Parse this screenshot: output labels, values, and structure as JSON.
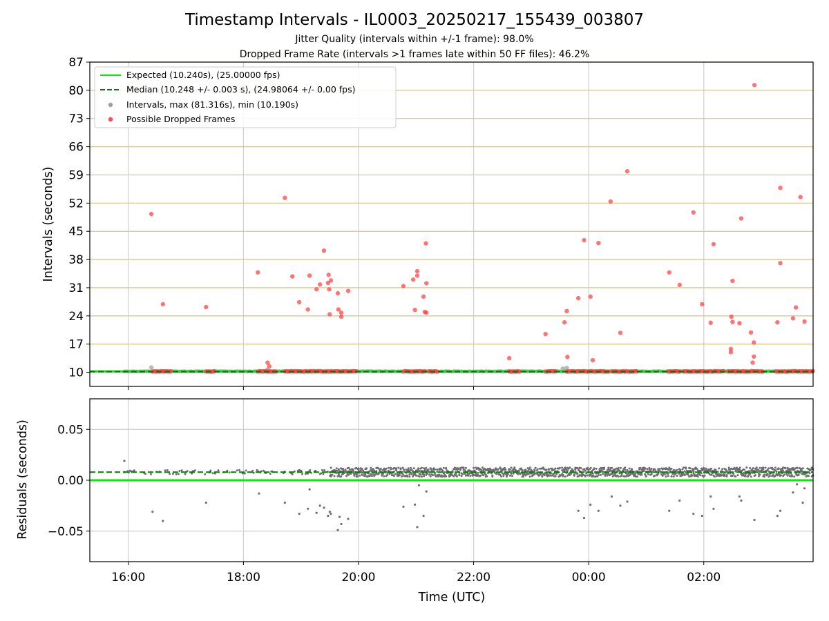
{
  "chart_data": {
    "type": "scatter",
    "title": "Timestamp Intervals - IL0003_20250217_155439_003807",
    "subtitles": [
      "Jitter Quality (intervals within +/-1 frame): 98.0%",
      "Dropped Frame Rate (intervals >1 frames late within 50 FF files): 46.2%"
    ],
    "xlabel": "Time (UTC)",
    "x_tick_labels": [
      "16:00",
      "18:00",
      "20:00",
      "22:00",
      "00:00",
      "02:00"
    ],
    "x_tick_hours": [
      16,
      18,
      20,
      22,
      24,
      26
    ],
    "xlim_hours": [
      15.33,
      27.9
    ],
    "top_panel": {
      "ylabel": "Intervals (seconds)",
      "ylim": [
        6.5,
        87
      ],
      "yticks": [
        10,
        17,
        24,
        31,
        38,
        45,
        52,
        59,
        66,
        73,
        80,
        87
      ],
      "grid": "vertical gridlines at x ticks, horizontal tan lines at y ticks",
      "legend_position": "upper-left",
      "series": [
        {
          "name": "Expected (10.240s), (25.00000 fps)",
          "kind": "line",
          "color": "#00ee00",
          "y": 10.24
        },
        {
          "name": "Median (10.248 +/- 0.003 s), (24.98064 +/- 0.00 fps)",
          "kind": "dashed-line",
          "color": "#007a00",
          "y": 10.248
        },
        {
          "name": "Intervals, max (81.316s), min (10.190s)",
          "kind": "scatter",
          "color": "#a0a0a0",
          "segments": [
            [
              15.93,
              27.9
            ]
          ],
          "points": [
            [
              16.4,
              11.2
            ],
            [
              23.55,
              10.9
            ],
            [
              23.62,
              11.1
            ],
            [
              18.42,
              10.7
            ]
          ]
        },
        {
          "name": "Possible Dropped Frames",
          "kind": "scatter",
          "color": "#ff4d4d",
          "points": [
            [
              16.4,
              49.3
            ],
            [
              16.6,
              26.9
            ],
            [
              17.35,
              26.2
            ],
            [
              18.25,
              34.8
            ],
            [
              18.42,
              12.4
            ],
            [
              18.45,
              11.5
            ],
            [
              18.72,
              53.3
            ],
            [
              18.85,
              33.8
            ],
            [
              18.97,
              27.4
            ],
            [
              19.12,
              25.6
            ],
            [
              19.15,
              34.0
            ],
            [
              19.27,
              30.6
            ],
            [
              19.33,
              31.8
            ],
            [
              19.4,
              40.2
            ],
            [
              19.47,
              32.2
            ],
            [
              19.48,
              34.2
            ],
            [
              19.49,
              30.6
            ],
            [
              19.5,
              24.4
            ],
            [
              19.52,
              32.8
            ],
            [
              19.64,
              29.6
            ],
            [
              19.65,
              25.6
            ],
            [
              19.7,
              23.8
            ],
            [
              19.7,
              24.8
            ],
            [
              19.82,
              30.2
            ],
            [
              20.78,
              31.4
            ],
            [
              20.95,
              33.0
            ],
            [
              20.98,
              25.5
            ],
            [
              21.02,
              35.1
            ],
            [
              21.02,
              34.0
            ],
            [
              21.13,
              28.8
            ],
            [
              21.15,
              25.0
            ],
            [
              21.17,
              42.0
            ],
            [
              21.18,
              32.1
            ],
            [
              21.18,
              24.8
            ],
            [
              22.62,
              13.5
            ],
            [
              23.25,
              19.5
            ],
            [
              23.58,
              22.4
            ],
            [
              23.63,
              13.8
            ],
            [
              23.62,
              25.2
            ],
            [
              23.82,
              28.4
            ],
            [
              23.92,
              42.8
            ],
            [
              24.03,
              28.8
            ],
            [
              24.07,
              13.0
            ],
            [
              24.17,
              42.1
            ],
            [
              24.38,
              52.4
            ],
            [
              24.55,
              19.8
            ],
            [
              24.67,
              59.9
            ],
            [
              25.4,
              34.8
            ],
            [
              25.58,
              31.7
            ],
            [
              25.82,
              49.7
            ],
            [
              25.97,
              26.9
            ],
            [
              26.12,
              22.3
            ],
            [
              26.17,
              41.8
            ],
            [
              26.47,
              15.0
            ],
            [
              26.47,
              15.8
            ],
            [
              26.48,
              23.8
            ],
            [
              26.5,
              22.5
            ],
            [
              26.5,
              32.7
            ],
            [
              26.62,
              22.2
            ],
            [
              26.65,
              48.2
            ],
            [
              26.82,
              19.9
            ],
            [
              26.85,
              12.4
            ],
            [
              26.87,
              13.9
            ],
            [
              26.87,
              17.4
            ],
            [
              26.88,
              81.3
            ],
            [
              27.28,
              22.4
            ],
            [
              27.33,
              55.8
            ],
            [
              27.33,
              37.1
            ],
            [
              27.55,
              23.4
            ],
            [
              27.6,
              26.1
            ],
            [
              27.68,
              53.5
            ],
            [
              27.75,
              22.6
            ]
          ],
          "dense_bands_at_y": 10.24,
          "dense_bands_hours": [
            [
              16.42,
              16.76
            ],
            [
              17.35,
              17.52
            ],
            [
              18.25,
              18.58
            ],
            [
              18.72,
              19.98
            ],
            [
              20.78,
              21.18
            ],
            [
              21.22,
              21.38
            ],
            [
              22.62,
              22.8
            ],
            [
              23.25,
              23.45
            ],
            [
              23.62,
              24.35
            ],
            [
              24.4,
              24.85
            ],
            [
              25.38,
              25.6
            ],
            [
              25.65,
              25.8
            ],
            [
              25.82,
              26.35
            ],
            [
              26.42,
              27.05
            ],
            [
              27.25,
              27.5
            ],
            [
              27.52,
              27.9
            ]
          ]
        }
      ]
    },
    "bottom_panel": {
      "ylabel": "Residuals (seconds)",
      "ylim": [
        -0.08,
        0.08
      ],
      "yticks": [
        0.05,
        0.0,
        -0.05
      ],
      "ytick_labels": [
        "0.05",
        "0.00",
        "−0.05"
      ],
      "grid": "horizontal and vertical gridlines",
      "series": [
        {
          "name": "Expected",
          "kind": "line",
          "color": "#00ee00",
          "y": 0.0
        },
        {
          "name": "Median",
          "kind": "dashed-line",
          "color": "#007a00",
          "y": 0.008
        },
        {
          "name": "Residuals",
          "kind": "scatter",
          "color": "#6e6e6e",
          "dense_band": {
            "center": 0.008,
            "spread": 0.003,
            "wide_from_hour": 19.5
          },
          "outliers": [
            [
              15.93,
              0.019
            ],
            [
              16.42,
              -0.031
            ],
            [
              16.6,
              -0.04
            ],
            [
              17.35,
              -0.022
            ],
            [
              18.27,
              -0.013
            ],
            [
              18.72,
              -0.022
            ],
            [
              18.97,
              -0.033
            ],
            [
              19.12,
              -0.028
            ],
            [
              19.15,
              -0.009
            ],
            [
              19.27,
              -0.032
            ],
            [
              19.33,
              -0.025
            ],
            [
              19.4,
              -0.027
            ],
            [
              19.47,
              -0.035
            ],
            [
              19.5,
              -0.031
            ],
            [
              19.52,
              -0.033
            ],
            [
              19.64,
              -0.049
            ],
            [
              19.67,
              -0.036
            ],
            [
              19.7,
              -0.043
            ],
            [
              19.82,
              -0.038
            ],
            [
              20.78,
              -0.026
            ],
            [
              20.98,
              -0.024
            ],
            [
              21.02,
              -0.046
            ],
            [
              21.05,
              -0.005
            ],
            [
              21.13,
              -0.035
            ],
            [
              21.18,
              -0.011
            ],
            [
              23.82,
              -0.03
            ],
            [
              23.92,
              -0.037
            ],
            [
              24.03,
              -0.024
            ],
            [
              24.17,
              -0.03
            ],
            [
              24.4,
              -0.016
            ],
            [
              24.55,
              -0.025
            ],
            [
              24.67,
              -0.021
            ],
            [
              25.4,
              -0.03
            ],
            [
              25.58,
              -0.02
            ],
            [
              25.82,
              -0.033
            ],
            [
              25.97,
              -0.035
            ],
            [
              26.12,
              -0.016
            ],
            [
              26.17,
              -0.028
            ],
            [
              26.62,
              -0.016
            ],
            [
              26.65,
              -0.02
            ],
            [
              26.88,
              -0.039
            ],
            [
              27.28,
              -0.035
            ],
            [
              27.33,
              -0.03
            ],
            [
              27.55,
              -0.012
            ],
            [
              27.62,
              -0.004
            ],
            [
              27.72,
              -0.022
            ],
            [
              27.75,
              -0.008
            ]
          ]
        }
      ]
    }
  }
}
